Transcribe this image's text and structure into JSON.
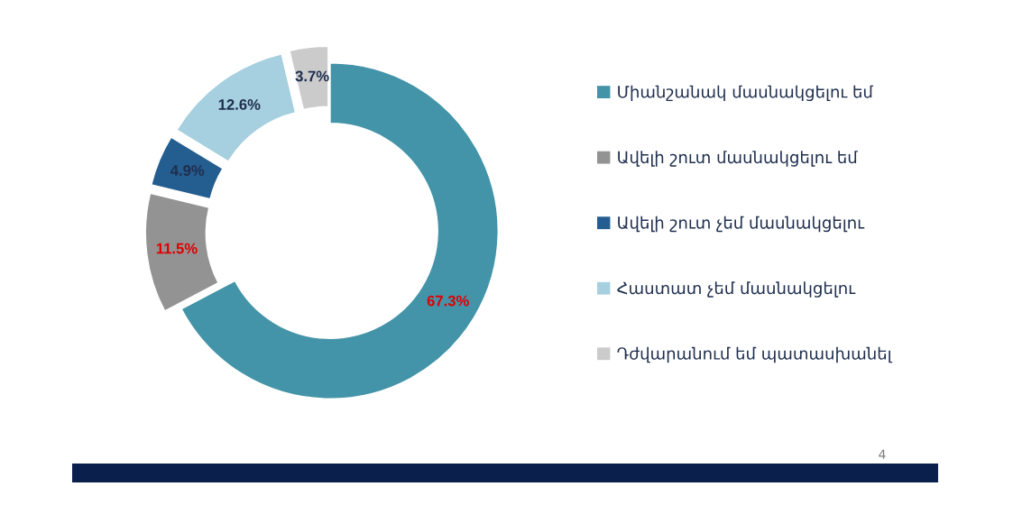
{
  "chart_data": {
    "type": "donut",
    "categories": [
      "Միանշանակ մասնակցելու եմ",
      "Ավելի շուտ մասնակցելու եմ",
      "Ավելի շուտ չեմ մասնակցելու",
      "Հաստատ չեմ մասնակցելու",
      "Դժվարանում եմ պատասխանել"
    ],
    "values": [
      67.3,
      11.5,
      4.9,
      12.6,
      3.7
    ],
    "value_labels": [
      "67.3%",
      "11.5%",
      "4.9%",
      "12.6%",
      "3.7%"
    ],
    "colors": [
      "#4394a8",
      "#939393",
      "#245d8f",
      "#a6d0df",
      "#cbcbcb"
    ],
    "legend": "right",
    "annotations": [
      "4"
    ]
  }
}
